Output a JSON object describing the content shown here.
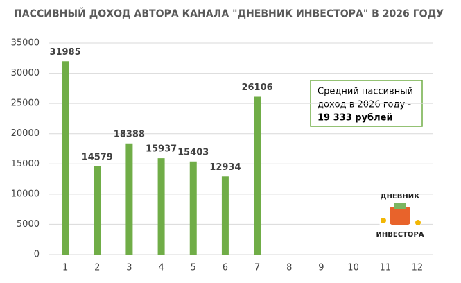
{
  "chart_data": {
    "type": "bar",
    "title": "ПАССИВНЫЙ ДОХОД АВТОРА КАНАЛА \"ДНЕВНИК ИНВЕСТОРА\" В 2026 ГОДУ",
    "categories": [
      "1",
      "2",
      "3",
      "4",
      "5",
      "6",
      "7",
      "8",
      "9",
      "10",
      "11",
      "12"
    ],
    "values": [
      31985,
      14579,
      18388,
      15937,
      15403,
      12934,
      26106,
      null,
      null,
      null,
      null,
      null
    ],
    "color": "#70ad47",
    "ylim": [
      0,
      35000
    ],
    "yticks": [
      0,
      5000,
      10000,
      15000,
      20000,
      25000,
      30000,
      35000
    ],
    "grid": true,
    "annotation": {
      "lines": [
        "Средний пассивный",
        "доход в 2026 году -"
      ],
      "highlight": "19 333 рублей"
    },
    "logo": {
      "top": "ДНЕВНИК",
      "bottom": "ИНВЕСТОРА"
    }
  }
}
